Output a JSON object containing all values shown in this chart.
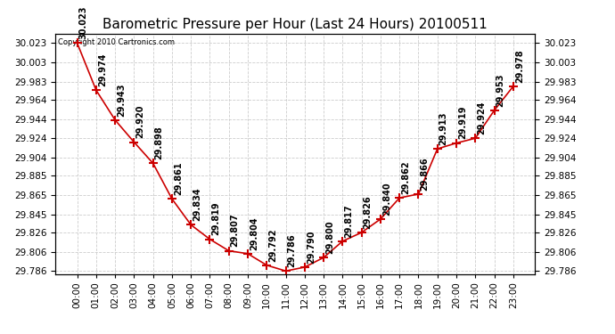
{
  "title": "Barometric Pressure per Hour (Last 24 Hours) 20100511",
  "copyright": "Copyright 2010 Cartronics.com",
  "hours": [
    "00:00",
    "01:00",
    "02:00",
    "03:00",
    "04:00",
    "05:00",
    "06:00",
    "07:00",
    "08:00",
    "09:00",
    "10:00",
    "11:00",
    "12:00",
    "13:00",
    "14:00",
    "15:00",
    "16:00",
    "17:00",
    "18:00",
    "19:00",
    "20:00",
    "21:00",
    "22:00",
    "23:00"
  ],
  "values": [
    30.023,
    29.974,
    29.943,
    29.92,
    29.898,
    29.861,
    29.834,
    29.819,
    29.807,
    29.804,
    29.792,
    29.786,
    29.79,
    29.8,
    29.817,
    29.826,
    29.84,
    29.862,
    29.866,
    29.913,
    29.919,
    29.924,
    29.953,
    29.978
  ],
  "line_color": "#cc0000",
  "marker_color": "#cc0000",
  "background_color": "#ffffff",
  "grid_color": "#cccccc",
  "yticks": [
    29.786,
    29.806,
    29.826,
    29.845,
    29.865,
    29.885,
    29.904,
    29.924,
    29.944,
    29.964,
    29.983,
    30.003,
    30.023
  ],
  "ylim_min": 29.783,
  "ylim_max": 30.033,
  "title_fontsize": 11,
  "label_fontsize": 7,
  "tick_fontsize": 7.5,
  "copyright_fontsize": 6
}
